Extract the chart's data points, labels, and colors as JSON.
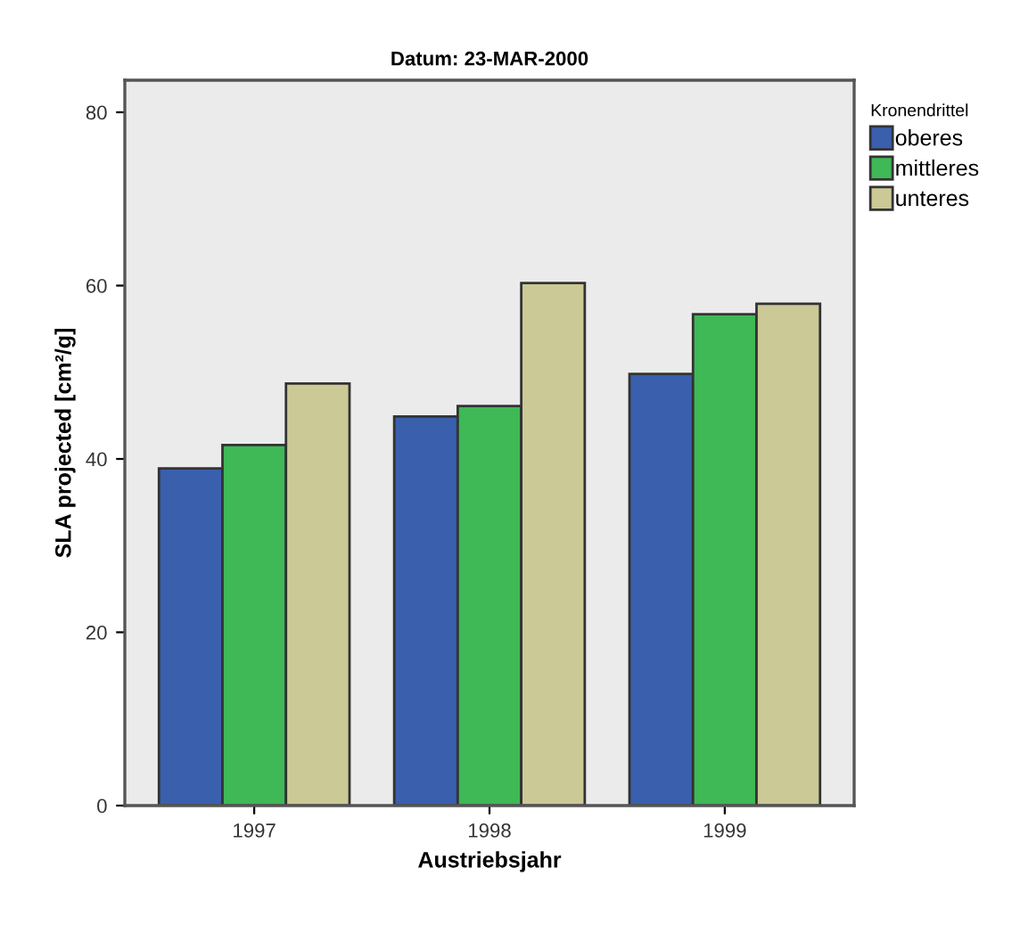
{
  "chart_data": {
    "type": "bar",
    "title": "Datum: 23-MAR-2000",
    "xlabel": "Austriebsjahr",
    "ylabel": "SLA projected [cm²/g]",
    "legend_title": "Kronendrittel",
    "categories": [
      "1997",
      "1998",
      "1999"
    ],
    "series": [
      {
        "name": "oberes",
        "color": "#3a5fad",
        "values": [
          38.9,
          44.9,
          49.8
        ]
      },
      {
        "name": "mittleres",
        "color": "#3fb856",
        "values": [
          41.6,
          46.1,
          56.7
        ]
      },
      {
        "name": "unteres",
        "color": "#cbc995",
        "values": [
          48.7,
          60.3,
          57.9
        ]
      }
    ],
    "ylim": [
      0,
      83.7
    ],
    "yticks": [
      0,
      20,
      40,
      60,
      80
    ],
    "grid": false,
    "legend": "right"
  }
}
